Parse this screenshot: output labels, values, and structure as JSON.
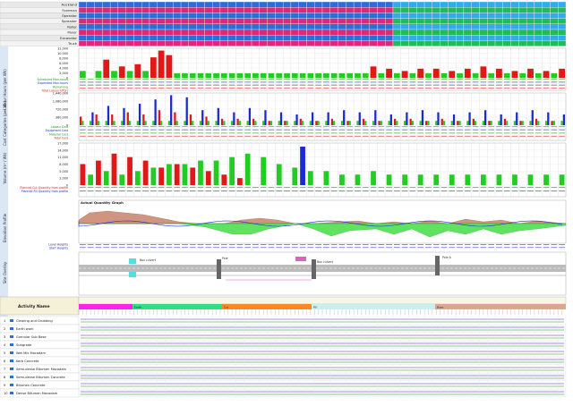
{
  "resource_rows": [
    {
      "label": "Auckland",
      "color": "#2a6fd6"
    },
    {
      "label": "Foreman",
      "color": "#e0287a"
    },
    {
      "label": "Operator",
      "color": "#2a6fd6"
    },
    {
      "label": "Spreader",
      "color": "#e0287a"
    },
    {
      "label": "Roller",
      "color": "#2a6fd6"
    },
    {
      "label": "Paver",
      "color": "#e0287a"
    },
    {
      "label": "Excavator",
      "color": "#2a6fd6"
    },
    {
      "label": "Truck",
      "color": "#e0287a"
    }
  ],
  "labour_chart": {
    "side_label": "Labour Hours (per Wk)",
    "ticks": [
      "12,000",
      "10,000",
      "8,000",
      "6,000",
      "4,000",
      "2,000",
      "0"
    ],
    "row_labels": [
      "Scheduled Man-hours",
      "Expended Man-hours",
      "Remaining",
      "Total Labour Effort"
    ],
    "red": [
      0,
      0,
      0,
      8,
      0,
      5,
      0,
      6,
      0,
      9,
      12,
      10,
      0,
      0,
      0,
      0,
      0,
      0,
      0,
      0,
      0,
      0,
      0,
      0,
      0,
      0,
      0,
      0,
      0,
      0,
      0,
      0,
      0,
      0,
      0,
      0,
      0,
      5,
      0,
      4,
      0,
      3,
      0,
      4,
      0,
      4,
      0,
      3,
      0,
      4,
      0,
      5,
      0,
      4,
      0,
      3,
      0,
      4,
      0,
      3,
      0,
      4
    ],
    "green": [
      3,
      0,
      3,
      0,
      3,
      0,
      3,
      0,
      3,
      0,
      3,
      0,
      2,
      2,
      2,
      2,
      2,
      2,
      2,
      2,
      2,
      2,
      2,
      2,
      2,
      2,
      2,
      2,
      2,
      2,
      2,
      2,
      2,
      2,
      2,
      2,
      2,
      2,
      2,
      2,
      2,
      2,
      2,
      2,
      2,
      2,
      2,
      2,
      2,
      2,
      2,
      2,
      2,
      2,
      2,
      2,
      2,
      2,
      2,
      2,
      2,
      2
    ]
  },
  "cost_chart": {
    "side_label": "Cost Categories (per Wk)",
    "ticks": [
      "1,440,000",
      "1,080,000",
      "720,000",
      "360,000",
      "0"
    ],
    "row_labels": [
      "Labour Cost",
      "Equipment Cost",
      "Material Cost",
      "Total Cost"
    ]
  },
  "volume_chart": {
    "side_label": "Volume (m³ / Wk)",
    "ticks": [
      "17,000",
      "14,000",
      "11,000",
      "8,000",
      "5,000",
      "2,000",
      "0"
    ],
    "row_labels": [
      "Planned Cut Quantity from profile",
      "Planned Fill Quantity from profile"
    ]
  },
  "profile_panel": {
    "title": "Actual Quantity Graph",
    "side_label": "Elevation Profile",
    "row_labels": [
      "Level Heights",
      "Start Heights"
    ]
  },
  "site_panel": {
    "side_label": "Site Overlay",
    "markers": [
      "Box culvert",
      "Pole",
      "Box culvert",
      "Pole A"
    ]
  },
  "activity_table": {
    "header": "Activity Name",
    "rows": [
      {
        "num": "1",
        "name": "Clearing and Grubbing"
      },
      {
        "num": "2",
        "name": "Earth work"
      },
      {
        "num": "3",
        "name": "Granular Sub Base"
      },
      {
        "num": "4",
        "name": "Subgrade"
      },
      {
        "num": "5",
        "name": "Wet Mix Macadam"
      },
      {
        "num": "6",
        "name": "Kerb Concrete"
      },
      {
        "num": "7",
        "name": "Semi-dense Bitumen Macadam"
      },
      {
        "num": "8",
        "name": "Semi-dense Bitumen Concrete"
      },
      {
        "num": "9",
        "name": "Bitumen Concrete"
      },
      {
        "num": "10",
        "name": "Dense Bitumen Macadam"
      }
    ],
    "phase_labels": [
      "Earth",
      "Cut",
      "Fill",
      "Base"
    ]
  },
  "colors": {
    "red": "#e01818",
    "green": "#22cc22",
    "blue": "#1a2ad0",
    "grid": "#d0d0d0",
    "band": "#7ea7d8"
  }
}
